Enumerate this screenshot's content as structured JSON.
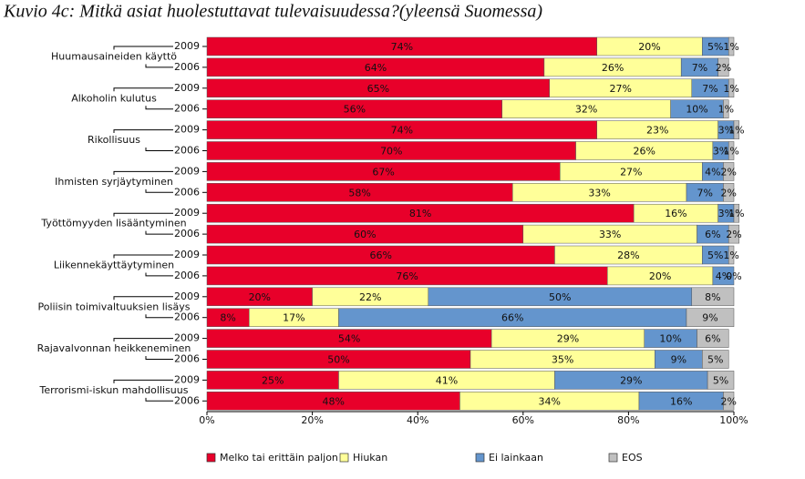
{
  "chart_data": {
    "type": "stacked-barh",
    "title": "Kuvio 4c: Mitkä asiat huolestuttavat tulevaisuudessa?(yleensä Suomessa)",
    "groups": [
      "Huumausaineiden käyttö",
      "Alkoholin kulutus",
      "Rikollisuus",
      "Ihmisten syrjäytyminen",
      "Työttömyyden lisääntyminen",
      "Liikennekäyttäytyminen",
      "Poliisin toimivaltuuksien lisäys",
      "Rajavalvonnan heikkeneminen",
      "Terrorismi-iskun mahdollisuus"
    ],
    "categories": [
      "2009",
      "2006",
      "2009",
      "2006",
      "2009",
      "2006",
      "2009",
      "2006",
      "2009",
      "2006",
      "2009",
      "2006",
      "2009",
      "2006",
      "2009",
      "2006",
      "2009",
      "2006"
    ],
    "series": [
      {
        "name": "Melko tai erittäin paljon",
        "color": "#e8002a",
        "values": [
          74,
          64,
          65,
          56,
          74,
          70,
          67,
          58,
          81,
          60,
          66,
          76,
          20,
          8,
          54,
          50,
          25,
          48
        ],
        "value_labels": [
          "74%",
          "64%",
          "65%",
          "56%",
          "74%",
          "70%",
          "67%",
          "58%",
          "81%",
          "60%",
          "66%",
          "76%",
          "20%",
          "8%",
          "54%",
          "50%",
          "25%",
          "48%"
        ]
      },
      {
        "name": "Hiukan",
        "color": "#ffff99",
        "values": [
          20,
          26,
          27,
          32,
          23,
          26,
          27,
          33,
          16,
          33,
          28,
          20,
          22,
          17,
          29,
          35,
          41,
          34
        ],
        "value_labels": [
          "20%",
          "26%",
          "27%",
          "32%",
          "23%",
          "26%",
          "27%",
          "33%",
          "16%",
          "33%",
          "28%",
          "20%",
          "22%",
          "17%",
          "29%",
          "35%",
          "41%",
          "34%"
        ]
      },
      {
        "name": "Ei lainkaan",
        "color": "#6495cd",
        "values": [
          5,
          7,
          7,
          10,
          3,
          3,
          4,
          7,
          3,
          6,
          5,
          4,
          50,
          66,
          10,
          9,
          29,
          16
        ],
        "value_labels": [
          "5%",
          "7%",
          "7%",
          "10%",
          "3%",
          "3%",
          "4%",
          "7%",
          "3%",
          "6%",
          "5%",
          "4%",
          "50%",
          "66%",
          "10%",
          "9%",
          "29%",
          "16%"
        ]
      },
      {
        "name": "EOS",
        "color": "#c0c0c0",
        "values": [
          1,
          2,
          1,
          1,
          1,
          1,
          2,
          2,
          1,
          2,
          1,
          0,
          8,
          9,
          6,
          5,
          5,
          2
        ],
        "value_labels": [
          "1%",
          "2%",
          "1%",
          "1%",
          "1%",
          "1%",
          "2%",
          "2%",
          "1%",
          "2%",
          "1%",
          "0%",
          "8%",
          "9%",
          "6%",
          "5%",
          "5%",
          "2%"
        ]
      }
    ],
    "xlim": [
      0,
      100
    ],
    "xticks": [
      {
        "value": 0,
        "label": "0%"
      },
      {
        "value": 20,
        "label": "20%"
      },
      {
        "value": 40,
        "label": "40%"
      },
      {
        "value": 60,
        "label": "60%"
      },
      {
        "value": 80,
        "label": "80%"
      },
      {
        "value": 100,
        "label": "100%"
      }
    ],
    "legend": "bottom"
  }
}
